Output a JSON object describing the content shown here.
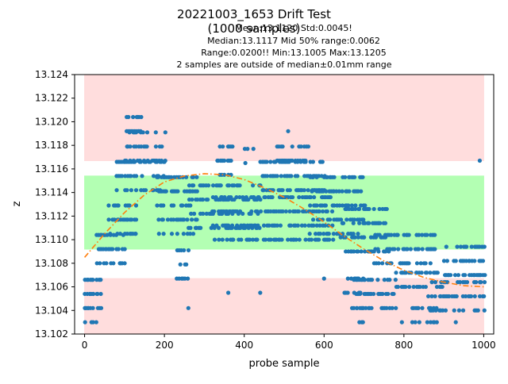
{
  "chart_data": {
    "type": "scatter",
    "title": "20221003_1653 Drift Test",
    "subtitle": "(1000 samples)",
    "stats_lines": [
      "Mean:13.1120  Std:0.0045!",
      "Median:13.1117  Mid 50% range:0.0062",
      "Range:0.0200!!  Min:13.1005  Max:13.1205",
      "2 samples are outside of median±0.01mm range"
    ],
    "xlabel": "probe sample",
    "ylabel": "z",
    "xlim": [
      -25,
      1025
    ],
    "ylim": [
      13.102,
      13.124
    ],
    "x_ticks": [
      0,
      200,
      400,
      600,
      800,
      1000
    ],
    "y_ticks": [
      13.102,
      13.104,
      13.106,
      13.108,
      13.11,
      13.112,
      13.114,
      13.116,
      13.118,
      13.12,
      13.122,
      13.124
    ],
    "bands": [
      {
        "label": "red",
        "x": [
          0,
          1000
        ],
        "y": [
          13.1167,
          13.124
        ],
        "color": "#ffdddd"
      },
      {
        "label": "green",
        "x": [
          0,
          1000
        ],
        "y": [
          13.1092,
          13.1154
        ],
        "color": "#b3ffb3"
      },
      {
        "label": "red",
        "x": [
          0,
          1000
        ],
        "y": [
          13.102,
          13.1067
        ],
        "color": "#ffdddd"
      }
    ],
    "fit": {
      "style": "dash-dot",
      "color": "#ff7f0e",
      "x": [
        0,
        50,
        100,
        150,
        200,
        250,
        300,
        350,
        400,
        450,
        500,
        550,
        600,
        650,
        700,
        750,
        800,
        850,
        900,
        950,
        1000
      ],
      "y": [
        13.1085,
        13.1105,
        13.1123,
        13.1138,
        13.1149,
        13.1154,
        13.1156,
        13.1155,
        13.1151,
        13.1144,
        13.1136,
        13.1126,
        13.1115,
        13.1103,
        13.1092,
        13.1082,
        13.1074,
        13.1068,
        13.1064,
        13.1061,
        13.106
      ]
    },
    "series": [
      {
        "color": "#1f77b4",
        "clusters": [
          {
            "x": [
              0,
              40
            ],
            "y": [
              13.1042,
              13.1066
            ]
          },
          {
            "x": [
              0,
              30
            ],
            "y": [
              13.103,
              13.1055
            ]
          },
          {
            "x": [
              30,
              100
            ],
            "y": [
              13.108,
              13.1105
            ]
          },
          {
            "x": [
              60,
              130
            ],
            "y": [
              13.1105,
              13.113
            ]
          },
          {
            "x": [
              80,
              200
            ],
            "y": [
              13.1142,
              13.1167
            ]
          },
          {
            "x": [
              100,
              200
            ],
            "y": [
              13.1167,
              13.1192
            ]
          },
          {
            "x": [
              100,
              140
            ],
            "y": [
              13.1192,
              13.1205
            ]
          },
          {
            "x": [
              180,
              280
            ],
            "y": [
              13.1105,
              13.1155
            ]
          },
          {
            "x": [
              230,
              260
            ],
            "y": [
              13.1067,
              13.1092
            ]
          },
          {
            "x": [
              260,
              440
            ],
            "y": [
              13.111,
              13.1155
            ]
          },
          {
            "x": [
              330,
              370
            ],
            "y": [
              13.1155,
              13.118
            ]
          },
          {
            "x": [
              400,
              420
            ],
            "y": [
              13.1165,
              13.118
            ]
          },
          {
            "x": [
              440,
              600
            ],
            "y": [
              13.1142,
              13.1167
            ]
          },
          {
            "x": [
              480,
              560
            ],
            "y": [
              13.1167,
              13.118
            ]
          },
          {
            "x": [
              320,
              620
            ],
            "y": [
              13.11,
              13.114
            ]
          },
          {
            "x": [
              560,
              700
            ],
            "y": [
              13.1105,
              13.1155
            ]
          },
          {
            "x": [
              640,
              760
            ],
            "y": [
              13.109,
              13.113
            ]
          },
          {
            "x": [
              650,
              700
            ],
            "y": [
              13.1055,
              13.1075
            ]
          },
          {
            "x": [
              670,
              780
            ],
            "y": [
              13.1042,
              13.1067
            ]
          },
          {
            "x": [
              680,
              700
            ],
            "y": [
              13.103,
              13.1042
            ]
          },
          {
            "x": [
              720,
              880
            ],
            "y": [
              13.108,
              13.1105
            ]
          },
          {
            "x": [
              780,
              900
            ],
            "y": [
              13.106,
              13.108
            ]
          },
          {
            "x": [
              860,
              1000
            ],
            "y": [
              13.104,
              13.1065
            ]
          },
          {
            "x": [
              900,
              1000
            ],
            "y": [
              13.107,
              13.1105
            ]
          },
          {
            "x": [
              820,
              880
            ],
            "y": [
              13.103,
              13.1042
            ]
          }
        ],
        "points": [
          {
            "x": 510,
            "y": 13.1192
          },
          {
            "x": 990,
            "y": 13.1167
          },
          {
            "x": 260,
            "y": 13.1042
          },
          {
            "x": 360,
            "y": 13.1055
          },
          {
            "x": 440,
            "y": 13.1055
          },
          {
            "x": 600,
            "y": 13.1067
          },
          {
            "x": 930,
            "y": 13.103
          },
          {
            "x": 795,
            "y": 13.103
          }
        ]
      }
    ],
    "grid": false
  }
}
